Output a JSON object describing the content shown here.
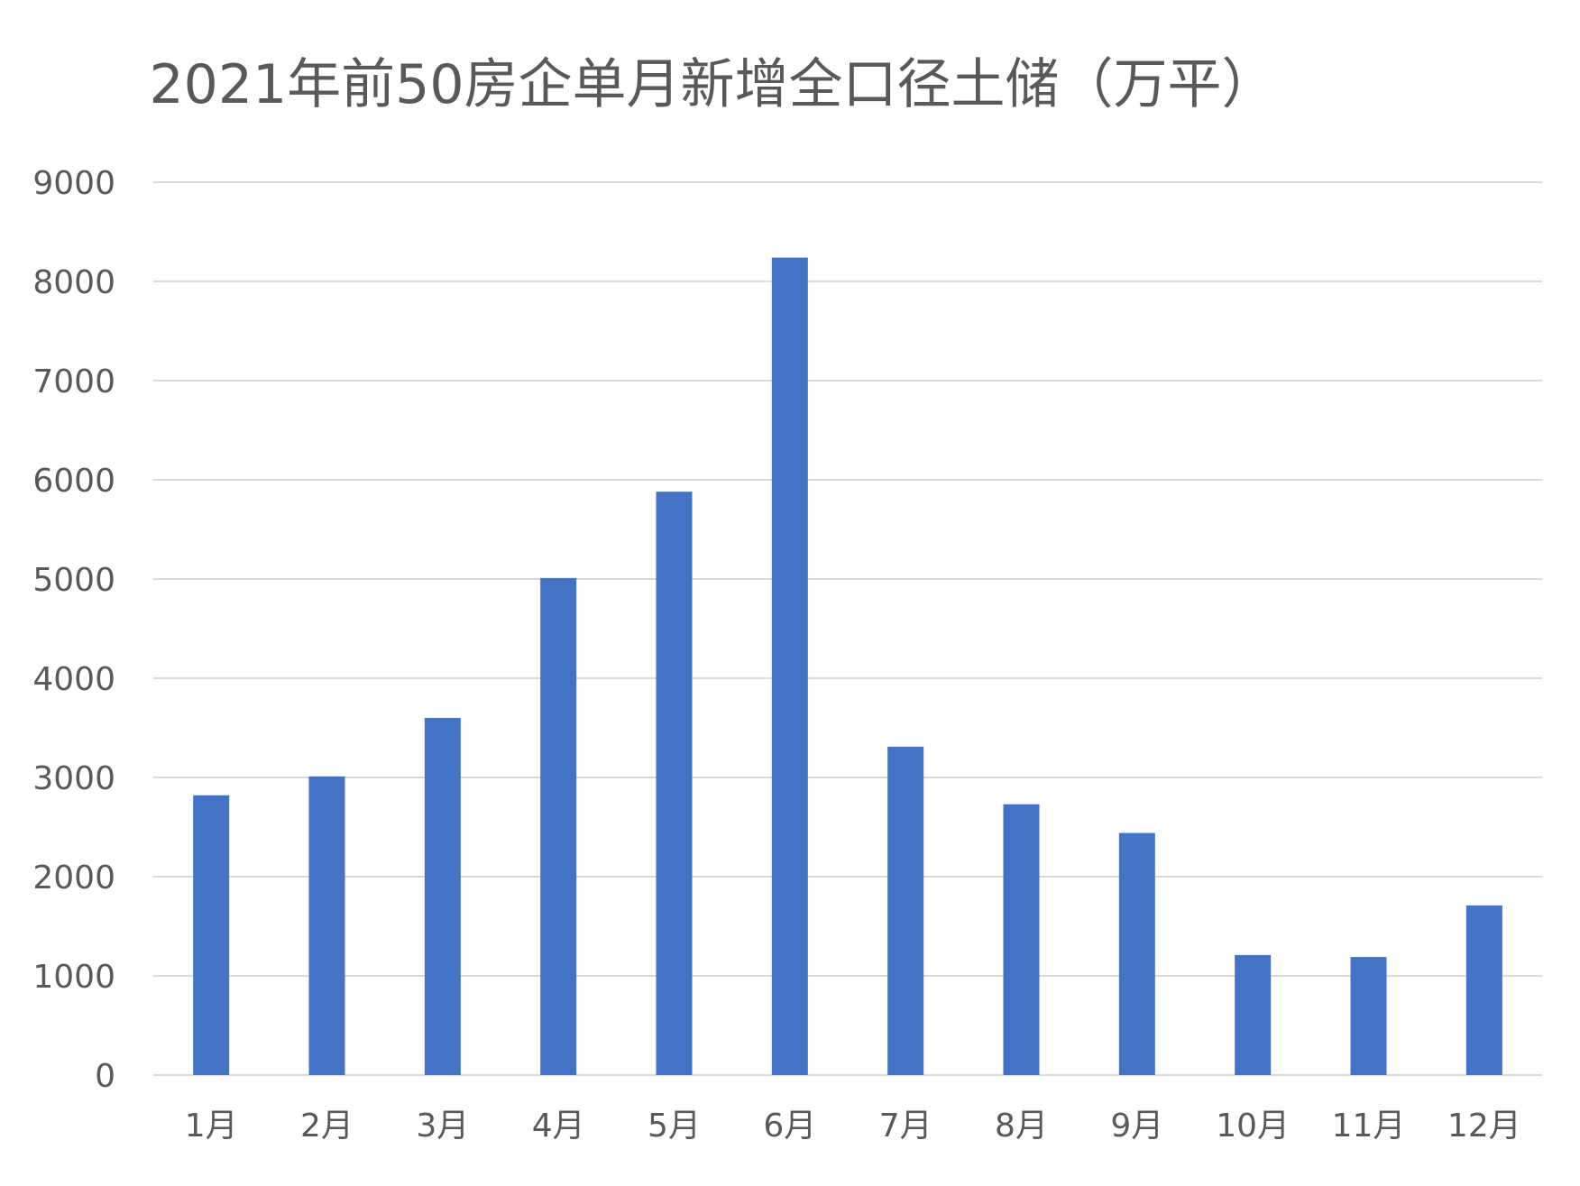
{
  "chart_data": {
    "type": "bar",
    "title": "2021年前50房企单月新增全口径土储（万平）",
    "categories": [
      "1月",
      "2月",
      "3月",
      "4月",
      "5月",
      "6月",
      "7月",
      "8月",
      "9月",
      "10月",
      "11月",
      "12月"
    ],
    "values": [
      2820,
      3010,
      3600,
      5010,
      5880,
      8240,
      3310,
      2730,
      2440,
      1210,
      1190,
      1710
    ],
    "y_ticks": [
      "0",
      "1000",
      "2000",
      "3000",
      "4000",
      "5000",
      "6000",
      "7000",
      "8000",
      "9000"
    ],
    "ylim": [
      0,
      9000
    ],
    "y_step": 1000,
    "grid": true,
    "legend": "none",
    "bar_color": "#4472C4"
  }
}
